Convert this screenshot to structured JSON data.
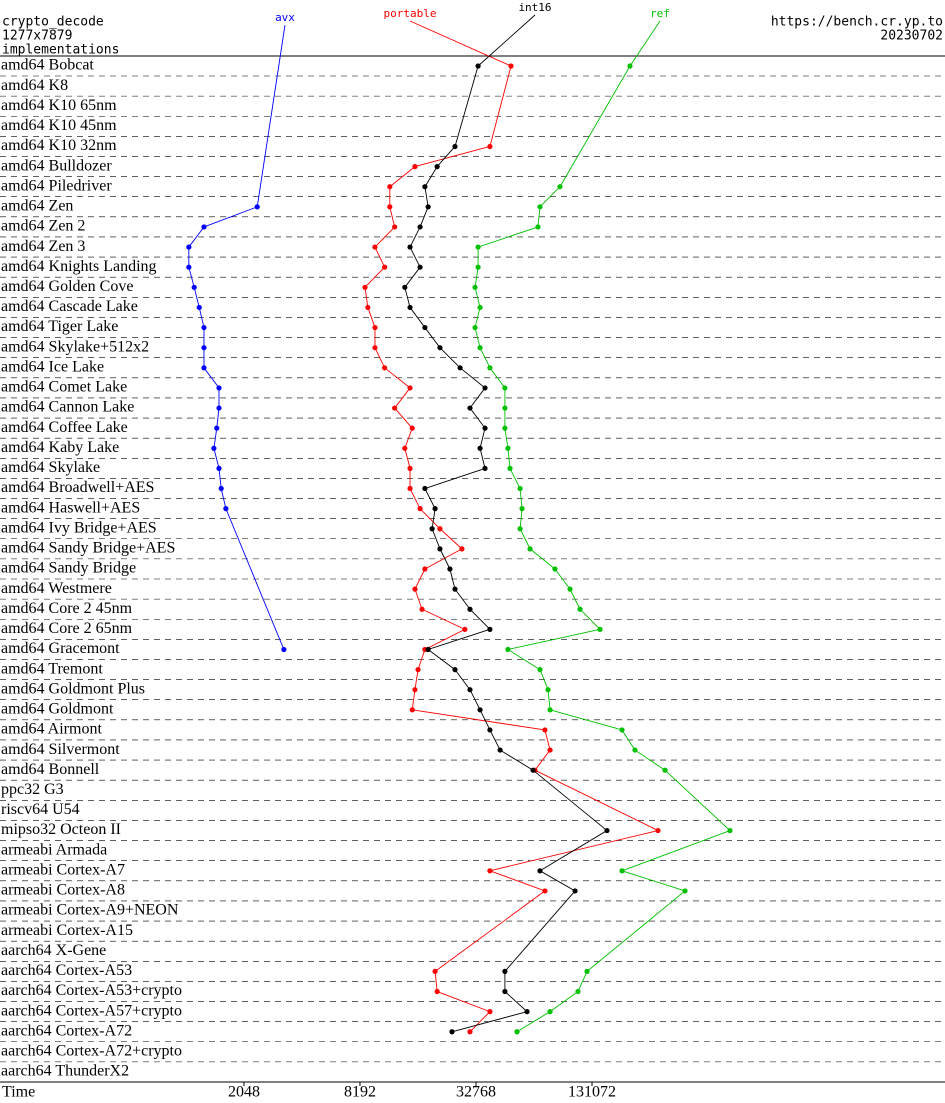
{
  "chart_data": {
    "type": "dot-line",
    "title": "crypto_decode",
    "subtitle": "1277x7879",
    "y_label": "implementations",
    "source": "https://bench.cr.yp.to",
    "date": "20230702",
    "x_label": "Time",
    "xscale": "log",
    "xlim": [
      111,
      8900000
    ],
    "xticks": [
      2048,
      8192,
      32768,
      131072
    ],
    "categories": [
      "amd64 Bobcat",
      "amd64 K8",
      "amd64 K10 65nm",
      "amd64 K10 45nm",
      "amd64 K10 32nm",
      "amd64 Bulldozer",
      "amd64 Piledriver",
      "amd64 Zen",
      "amd64 Zen 2",
      "amd64 Zen 3",
      "amd64 Knights Landing",
      "amd64 Golden Cove",
      "amd64 Cascade Lake",
      "amd64 Tiger Lake",
      "amd64 Skylake+512x2",
      "amd64 Ice Lake",
      "amd64 Comet Lake",
      "amd64 Cannon Lake",
      "amd64 Coffee Lake",
      "amd64 Kaby Lake",
      "amd64 Skylake",
      "amd64 Broadwell+AES",
      "amd64 Haswell+AES",
      "amd64 Ivy Bridge+AES",
      "amd64 Sandy Bridge+AES",
      "amd64 Sandy Bridge",
      "amd64 Westmere",
      "amd64 Core 2 45nm",
      "amd64 Core 2 65nm",
      "amd64 Gracemont",
      "amd64 Tremont",
      "amd64 Goldmont Plus",
      "amd64 Goldmont",
      "amd64 Airmont",
      "amd64 Silvermont",
      "amd64 Bonnell",
      "ppc32 G3",
      "riscv64 U54",
      "mipso32 Octeon II",
      "armeabi Armada",
      "armeabi Cortex-A7",
      "armeabi Cortex-A8",
      "armeabi Cortex-A9+NEON",
      "armeabi Cortex-A15",
      "aarch64 X-Gene",
      "aarch64 Cortex-A53",
      "aarch64 Cortex-A53+crypto",
      "aarch64 Cortex-A57+crypto",
      "aarch64 Cortex-A72",
      "aarch64 Cortex-A72+crypto",
      "aarch64 ThunderX2"
    ],
    "series": [
      {
        "name": "avx",
        "color": "#0000ff",
        "values": [
          null,
          null,
          null,
          null,
          null,
          null,
          null,
          2400,
          1270,
          1060,
          1060,
          1130,
          1200,
          1270,
          1270,
          1270,
          1520,
          1520,
          1480,
          1430,
          1520,
          1560,
          1650,
          null,
          null,
          null,
          null,
          null,
          null,
          3300,
          null,
          null,
          null,
          null,
          null,
          null,
          null,
          null,
          null,
          null,
          null,
          null,
          null,
          null,
          null,
          null,
          null,
          null,
          null,
          null,
          null
        ]
      },
      {
        "name": "portable",
        "color": "#ff0000",
        "values": [
          49800,
          null,
          null,
          null,
          38700,
          15800,
          11700,
          11700,
          12400,
          9800,
          11000,
          8700,
          9000,
          9800,
          9800,
          11000,
          14900,
          12400,
          15300,
          14000,
          14900,
          14900,
          16800,
          21300,
          27700,
          17800,
          15800,
          17200,
          28700,
          17800,
          16400,
          15800,
          15300,
          74700,
          79400,
          66300,
          null,
          null,
          288400,
          null,
          38700,
          74700,
          null,
          null,
          null,
          20100,
          20600,
          38700,
          30500,
          null,
          null
        ]
      },
      {
        "name": "int16",
        "color": "#000000",
        "values": [
          33600,
          null,
          null,
          null,
          25500,
          20600,
          17800,
          18500,
          16800,
          14900,
          16800,
          14000,
          14900,
          17800,
          21300,
          27100,
          36500,
          30500,
          36500,
          34400,
          36500,
          17800,
          20100,
          19400,
          21300,
          24000,
          25500,
          30500,
          38700,
          18500,
          25500,
          30500,
          34400,
          38700,
          43700,
          64800,
          null,
          null,
          156800,
          null,
          70400,
          107000,
          null,
          null,
          null,
          46300,
          46300,
          60300,
          24600,
          null,
          null
        ]
      },
      {
        "name": "ref",
        "color": "#00c000",
        "values": [
          206400,
          null,
          null,
          null,
          null,
          null,
          89400,
          70400,
          68700,
          33600,
          33600,
          32400,
          34400,
          32400,
          34400,
          38700,
          46300,
          46300,
          46300,
          48000,
          49200,
          55500,
          56800,
          55500,
          62500,
          84200,
          100800,
          113600,
          144200,
          48000,
          70400,
          77500,
          79400,
          187600,
          219100,
          313600,
          null,
          null,
          681800,
          null,
          187600,
          398200,
          null,
          null,
          null,
          123500,
          110900,
          79400,
          53500,
          null,
          null
        ]
      }
    ]
  }
}
